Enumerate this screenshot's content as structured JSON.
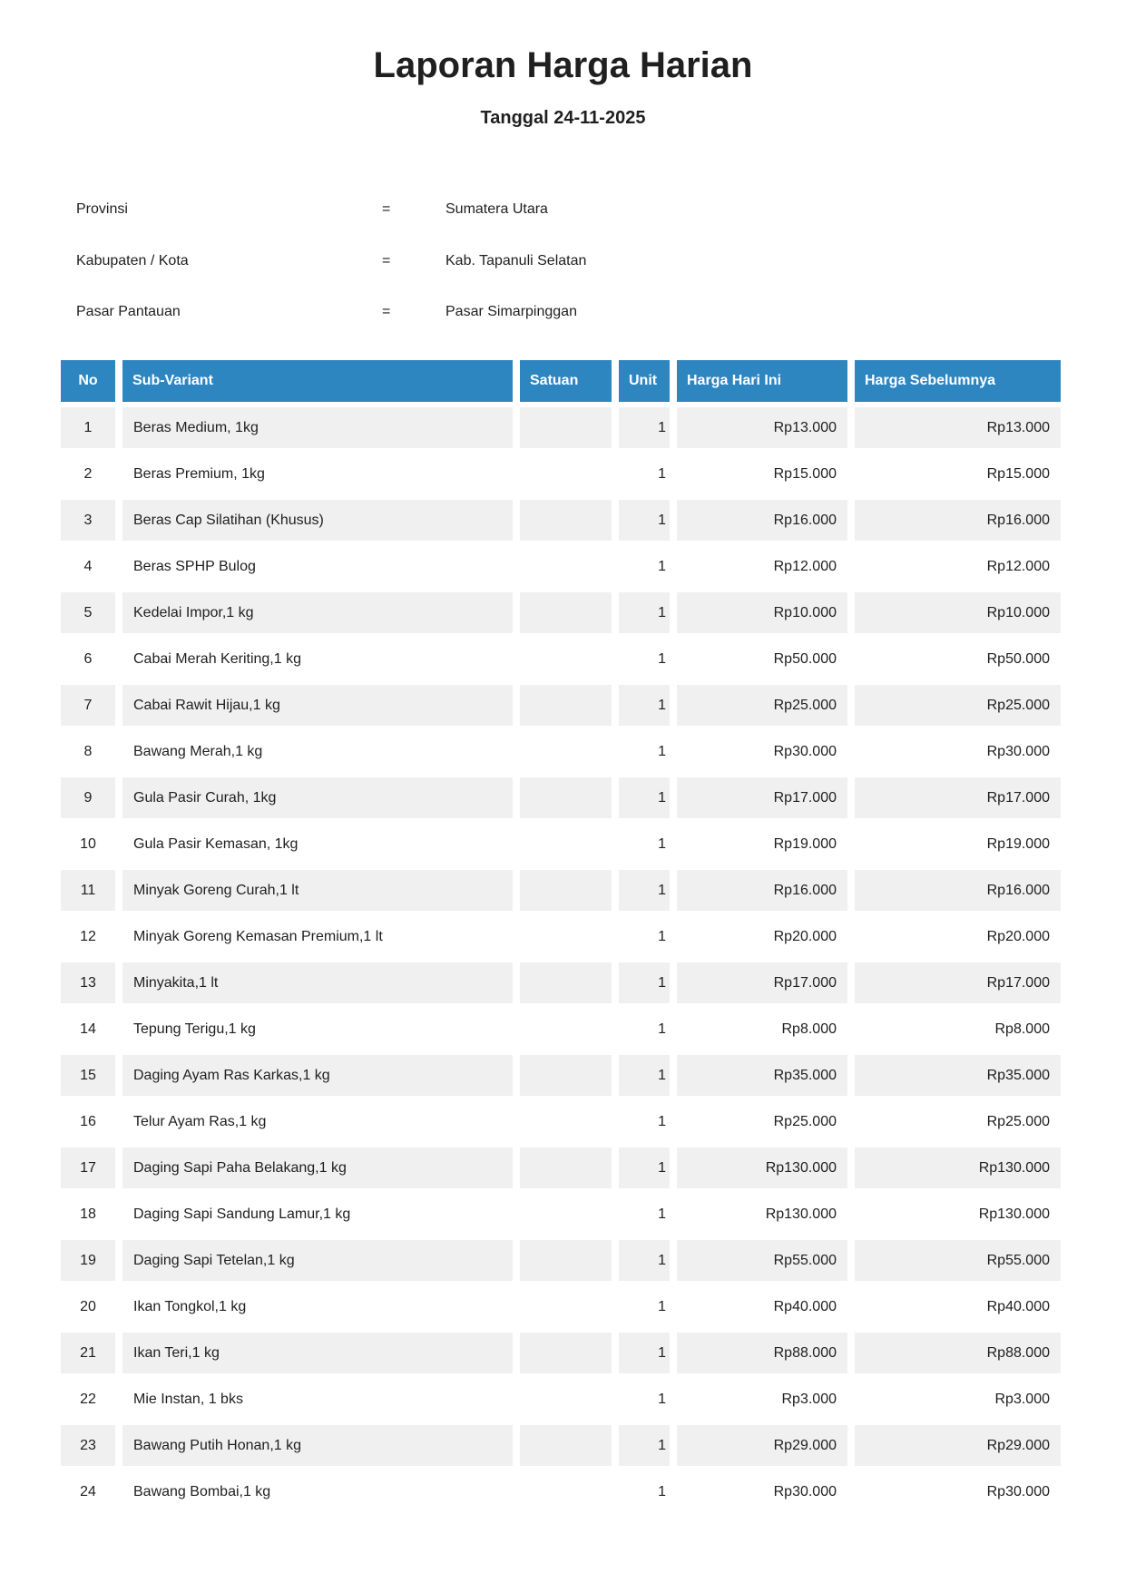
{
  "page": {
    "title": "Laporan Harga Harian",
    "subtitle": "Tanggal 24-11-2025"
  },
  "info": [
    {
      "label": "Provinsi",
      "eq": "=",
      "value": "Sumatera Utara"
    },
    {
      "label": "Kabupaten / Kota",
      "eq": "=",
      "value": "Kab. Tapanuli Selatan"
    },
    {
      "label": "Pasar Pantauan",
      "eq": "=",
      "value": "Pasar Simarpinggan"
    }
  ],
  "table": {
    "headers": {
      "no": "No",
      "sub_variant": "Sub-Variant",
      "satuan": "Satuan",
      "unit": "Unit",
      "harga_hari_ini": "Harga Hari Ini",
      "harga_sebelumnya": "Harga Sebelumnya"
    },
    "rows": [
      {
        "no": "1",
        "sub_variant": "Beras Medium, 1kg",
        "satuan": "",
        "unit": "1",
        "harga_hari_ini": "Rp13.000",
        "harga_sebelumnya": "Rp13.000"
      },
      {
        "no": "2",
        "sub_variant": "Beras Premium, 1kg",
        "satuan": "",
        "unit": "1",
        "harga_hari_ini": "Rp15.000",
        "harga_sebelumnya": "Rp15.000"
      },
      {
        "no": "3",
        "sub_variant": "Beras Cap Silatihan (Khusus)",
        "satuan": "",
        "unit": "1",
        "harga_hari_ini": "Rp16.000",
        "harga_sebelumnya": "Rp16.000"
      },
      {
        "no": "4",
        "sub_variant": "Beras SPHP Bulog",
        "satuan": "",
        "unit": "1",
        "harga_hari_ini": "Rp12.000",
        "harga_sebelumnya": "Rp12.000"
      },
      {
        "no": "5",
        "sub_variant": "Kedelai Impor,1 kg",
        "satuan": "",
        "unit": "1",
        "harga_hari_ini": "Rp10.000",
        "harga_sebelumnya": "Rp10.000"
      },
      {
        "no": "6",
        "sub_variant": "Cabai Merah Keriting,1 kg",
        "satuan": "",
        "unit": "1",
        "harga_hari_ini": "Rp50.000",
        "harga_sebelumnya": "Rp50.000"
      },
      {
        "no": "7",
        "sub_variant": "Cabai Rawit Hijau,1 kg",
        "satuan": "",
        "unit": "1",
        "harga_hari_ini": "Rp25.000",
        "harga_sebelumnya": "Rp25.000"
      },
      {
        "no": "8",
        "sub_variant": "Bawang Merah,1 kg",
        "satuan": "",
        "unit": "1",
        "harga_hari_ini": "Rp30.000",
        "harga_sebelumnya": "Rp30.000"
      },
      {
        "no": "9",
        "sub_variant": "Gula Pasir Curah, 1kg",
        "satuan": "",
        "unit": "1",
        "harga_hari_ini": "Rp17.000",
        "harga_sebelumnya": "Rp17.000"
      },
      {
        "no": "10",
        "sub_variant": "Gula Pasir Kemasan, 1kg",
        "satuan": "",
        "unit": "1",
        "harga_hari_ini": "Rp19.000",
        "harga_sebelumnya": "Rp19.000"
      },
      {
        "no": "11",
        "sub_variant": "Minyak Goreng Curah,1 lt",
        "satuan": "",
        "unit": "1",
        "harga_hari_ini": "Rp16.000",
        "harga_sebelumnya": "Rp16.000"
      },
      {
        "no": "12",
        "sub_variant": "Minyak Goreng Kemasan Premium,1 lt",
        "satuan": "",
        "unit": "1",
        "harga_hari_ini": "Rp20.000",
        "harga_sebelumnya": "Rp20.000"
      },
      {
        "no": "13",
        "sub_variant": "Minyakita,1 lt",
        "satuan": "",
        "unit": "1",
        "harga_hari_ini": "Rp17.000",
        "harga_sebelumnya": "Rp17.000"
      },
      {
        "no": "14",
        "sub_variant": "Tepung Terigu,1 kg",
        "satuan": "",
        "unit": "1",
        "harga_hari_ini": "Rp8.000",
        "harga_sebelumnya": "Rp8.000"
      },
      {
        "no": "15",
        "sub_variant": "Daging Ayam Ras Karkas,1 kg",
        "satuan": "",
        "unit": "1",
        "harga_hari_ini": "Rp35.000",
        "harga_sebelumnya": "Rp35.000"
      },
      {
        "no": "16",
        "sub_variant": "Telur Ayam Ras,1 kg",
        "satuan": "",
        "unit": "1",
        "harga_hari_ini": "Rp25.000",
        "harga_sebelumnya": "Rp25.000"
      },
      {
        "no": "17",
        "sub_variant": "Daging Sapi Paha Belakang,1 kg",
        "satuan": "",
        "unit": "1",
        "harga_hari_ini": "Rp130.000",
        "harga_sebelumnya": "Rp130.000"
      },
      {
        "no": "18",
        "sub_variant": "Daging Sapi Sandung Lamur,1 kg",
        "satuan": "",
        "unit": "1",
        "harga_hari_ini": "Rp130.000",
        "harga_sebelumnya": "Rp130.000"
      },
      {
        "no": "19",
        "sub_variant": "Daging Sapi Tetelan,1 kg",
        "satuan": "",
        "unit": "1",
        "harga_hari_ini": "Rp55.000",
        "harga_sebelumnya": "Rp55.000"
      },
      {
        "no": "20",
        "sub_variant": "Ikan Tongkol,1 kg",
        "satuan": "",
        "unit": "1",
        "harga_hari_ini": "Rp40.000",
        "harga_sebelumnya": "Rp40.000"
      },
      {
        "no": "21",
        "sub_variant": "Ikan Teri,1 kg",
        "satuan": "",
        "unit": "1",
        "harga_hari_ini": "Rp88.000",
        "harga_sebelumnya": "Rp88.000"
      },
      {
        "no": "22",
        "sub_variant": "Mie Instan, 1 bks",
        "satuan": "",
        "unit": "1",
        "harga_hari_ini": "Rp3.000",
        "harga_sebelumnya": "Rp3.000"
      },
      {
        "no": "23",
        "sub_variant": "Bawang Putih Honan,1 kg",
        "satuan": "",
        "unit": "1",
        "harga_hari_ini": "Rp29.000",
        "harga_sebelumnya": "Rp29.000"
      },
      {
        "no": "24",
        "sub_variant": "Bawang Bombai,1 kg",
        "satuan": "",
        "unit": "1",
        "harga_hari_ini": "Rp30.000",
        "harga_sebelumnya": "Rp30.000"
      }
    ]
  },
  "colors": {
    "header_bg": "#2E86C1",
    "header_text": "#FFFFFF",
    "row_alt_bg": "#F0F0F0",
    "body_text": "#1F1F1F"
  }
}
